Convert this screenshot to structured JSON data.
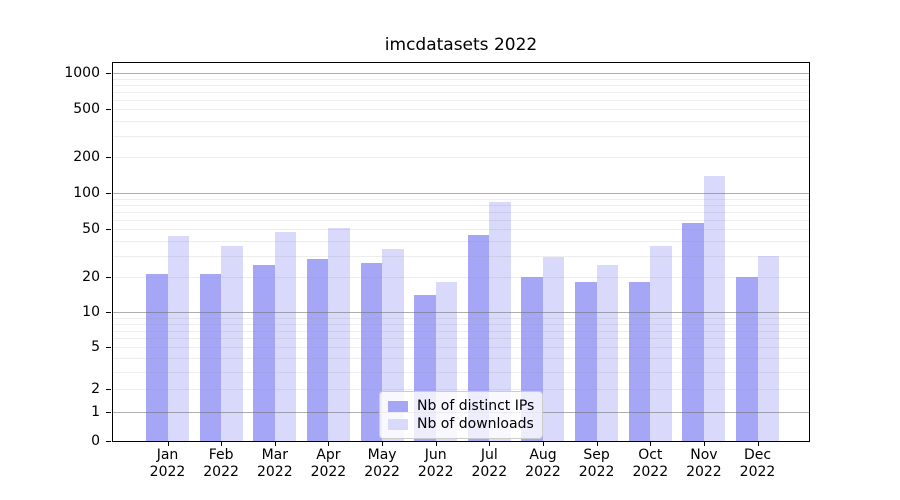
{
  "title": "imcdatasets 2022",
  "chart_data": {
    "type": "bar",
    "title": "imcdatasets 2022",
    "yscale": "asinh",
    "grid": true,
    "legend_position": "lower center",
    "x_tick_year": "2022",
    "categories": [
      "Jan",
      "Feb",
      "Mar",
      "Apr",
      "May",
      "Jun",
      "Jul",
      "Aug",
      "Sep",
      "Oct",
      "Nov",
      "Dec"
    ],
    "y_ticks": [
      1000,
      500,
      200,
      100,
      50,
      20,
      10,
      5,
      2,
      1,
      0
    ],
    "ylim": [
      0,
      1250
    ],
    "series": [
      {
        "name": "Nb of distinct IPs",
        "color": "#a6a6f7",
        "values": [
          21,
          21,
          25,
          28,
          26,
          14,
          45,
          20,
          18,
          18,
          56,
          20
        ]
      },
      {
        "name": "Nb of downloads",
        "color": "#d9d9fb",
        "values": [
          44,
          36,
          47,
          51,
          34,
          18,
          84,
          29,
          25,
          36,
          138,
          30
        ]
      }
    ],
    "colors": {
      "axis": "#000000",
      "text": "#000000",
      "major_grid": "#b5b5b5",
      "minor_grid": "#ececec",
      "legend_border": "#cccccc"
    }
  }
}
